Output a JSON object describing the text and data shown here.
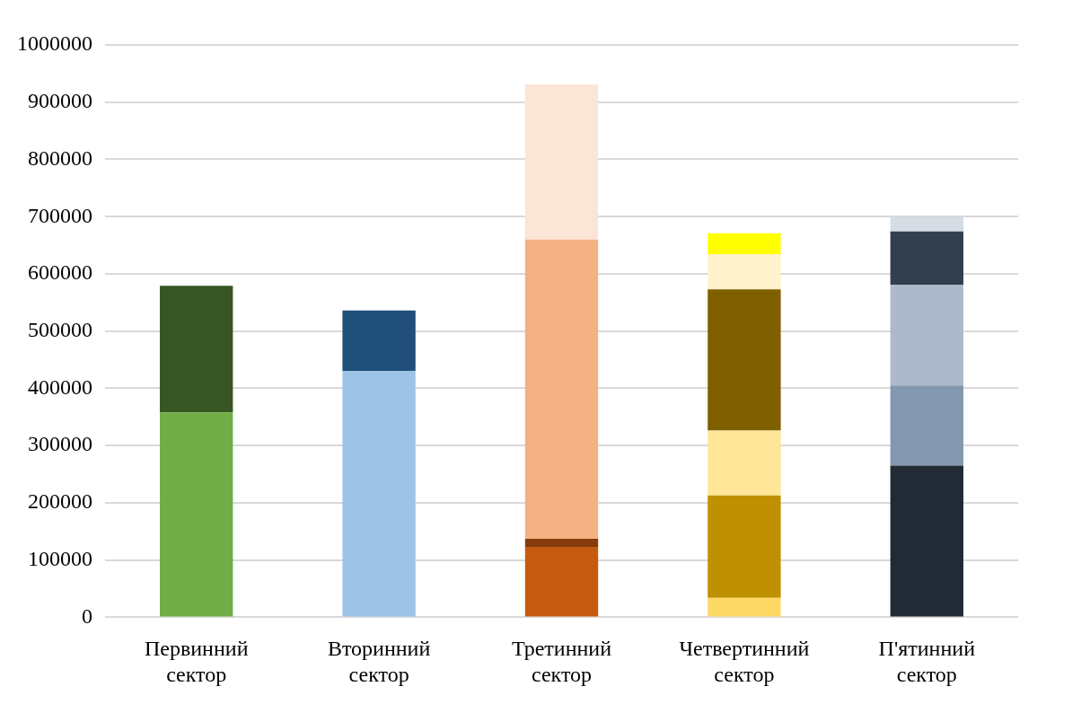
{
  "chart_data": {
    "type": "bar",
    "stacked": true,
    "categories": [
      "Первинний сектор",
      "Вторинний сектор",
      "Третинний сектор",
      "Четвертинний сектор",
      "П'ятинний сектор"
    ],
    "series": [
      {
        "colors": [
          "#70ad47",
          "#9dc3e6",
          "#c55a11",
          "#ffd966",
          "#222a35"
        ],
        "values": [
          358000,
          430000,
          123000,
          34000,
          265000
        ]
      },
      {
        "colors": [
          "#375623",
          "#1f4e79",
          "#843c0c",
          "#bf9000",
          "#8497b0"
        ],
        "values": [
          221000,
          106000,
          14000,
          179000,
          140000
        ]
      },
      {
        "colors": [
          null,
          null,
          "#f4b183",
          "#ffe699",
          "#adb9ca"
        ],
        "values": [
          null,
          null,
          523000,
          113000,
          176000
        ]
      },
      {
        "colors": [
          null,
          null,
          "#fbe5d6",
          "#7f6000",
          "#323f4f"
        ],
        "values": [
          null,
          null,
          271000,
          247000,
          93000
        ]
      },
      {
        "colors": [
          null,
          null,
          null,
          "#fff2cc",
          "#d6dce4"
        ],
        "values": [
          null,
          null,
          null,
          61000,
          25000
        ]
      },
      {
        "colors": [
          null,
          null,
          null,
          "#ffff00",
          null
        ],
        "values": [
          null,
          null,
          null,
          37000,
          null
        ]
      }
    ],
    "ylim": [
      0,
      1000000
    ],
    "yticks": [
      0,
      100000,
      200000,
      300000,
      400000,
      500000,
      600000,
      700000,
      800000,
      900000,
      1000000
    ],
    "grid": "y",
    "legend": false
  }
}
